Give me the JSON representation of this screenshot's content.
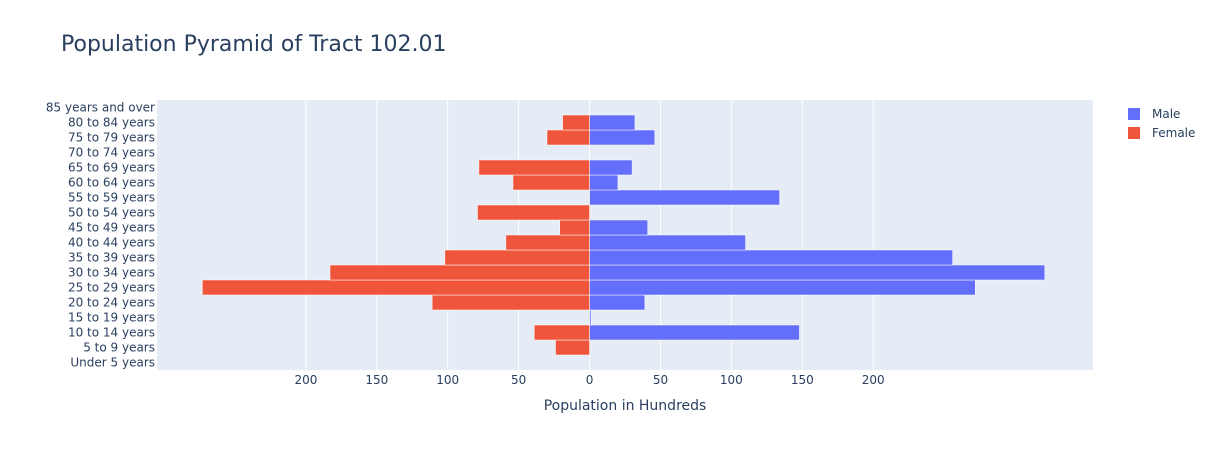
{
  "chart_data": {
    "type": "bar",
    "orientation": "horizontal",
    "title": "Population Pyramid of Tract 102.01",
    "xlabel": "Population in Hundreds",
    "ylabel": "",
    "categories": [
      "Under 5 years",
      "5 to 9 years",
      "10 to 14 years",
      "15 to 19 years",
      "20 to 24 years",
      "25 to 29 years",
      "30 to 34 years",
      "35 to 39 years",
      "40 to 44 years",
      "45 to 49 years",
      "50 to 54 years",
      "55 to 59 years",
      "60 to 64 years",
      "65 to 69 years",
      "70 to 74 years",
      "75 to 79 years",
      "80 to 84 years",
      "85 years and over"
    ],
    "series": [
      {
        "name": "Male",
        "color": "#636efa",
        "values": [
          0,
          0,
          148,
          1,
          39,
          272,
          321,
          256,
          110,
          41,
          0,
          134,
          20,
          30,
          0,
          46,
          32,
          0
        ]
      },
      {
        "name": "Female",
        "color": "#ef553b",
        "values": [
          0,
          -24,
          -39,
          0,
          -111,
          -273,
          -183,
          -102,
          -59,
          -21,
          -79,
          0,
          -54,
          -78,
          0,
          -30,
          -19,
          0
        ]
      }
    ],
    "xlim": [
      -305,
      355
    ],
    "x_ticks": [
      {
        "value": -200,
        "label": "200"
      },
      {
        "value": -150,
        "label": "150"
      },
      {
        "value": -100,
        "label": "100"
      },
      {
        "value": -50,
        "label": "50"
      },
      {
        "value": 0,
        "label": "0"
      },
      {
        "value": 50,
        "label": "50"
      },
      {
        "value": 100,
        "label": "100"
      },
      {
        "value": 150,
        "label": "150"
      },
      {
        "value": 200,
        "label": "200"
      }
    ],
    "barmode": "overlay",
    "grid": true,
    "legend_position": "top-right",
    "plot_bg": "#e5ecf6",
    "grid_color": "#ffffff"
  }
}
